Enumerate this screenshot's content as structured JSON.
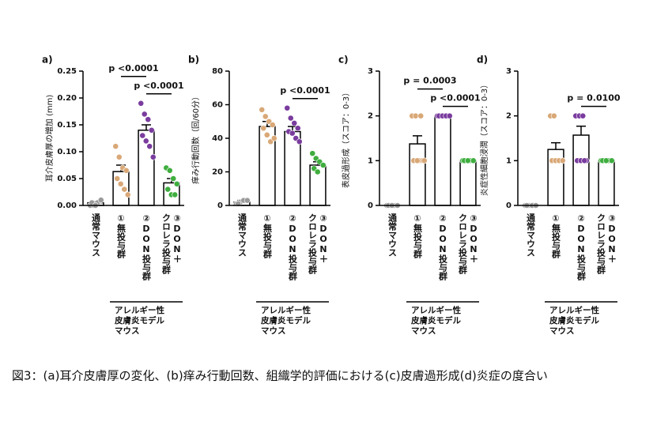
{
  "chart_data": [
    {
      "type": "bar",
      "label": "a)",
      "ylabel": "耳介皮膚厚の増加 (mm)",
      "categories": [
        [
          "通常マウス"
        ],
        [
          "①無投与群"
        ],
        [
          "②DON投与群"
        ],
        [
          "③DON＋",
          "クロレラ投与群"
        ]
      ],
      "values": [
        0.005,
        0.063,
        0.14,
        0.042
      ],
      "errors": [
        0.002,
        0.012,
        0.01,
        0.008
      ],
      "points": [
        [
          0,
          0,
          0.005,
          0.01,
          0.005,
          0
        ],
        [
          0.11,
          0.09,
          0.07,
          0.065,
          0.05,
          0.04,
          0.03,
          0.02
        ],
        [
          0.19,
          0.17,
          0.16,
          0.14,
          0.13,
          0.12,
          0.11,
          0.09
        ],
        [
          0.07,
          0.065,
          0.05,
          0.04,
          0.03,
          0.02,
          0.02
        ]
      ],
      "colors": [
        "#9a9a9a",
        "#d9a877",
        "#7a3c9e",
        "#3fae3f"
      ],
      "ylim": [
        0,
        0.25
      ],
      "yticks": [
        {
          "value": 0,
          "label": "0.00"
        },
        0.05,
        {
          "value": 0.1,
          "label": "0.10"
        },
        0.15,
        {
          "value": 0.2,
          "label": "0.20"
        },
        0.25
      ],
      "comparisons": [
        {
          "label": "p <0.0001",
          "groups": [
            2,
            3
          ]
        },
        {
          "label": "p <0.0001",
          "groups": [
            1,
            2
          ]
        }
      ],
      "group_label": [
        "アレルギー性",
        "皮膚炎モデル",
        "マウス"
      ],
      "group_span": [
        1,
        3
      ]
    },
    {
      "type": "bar",
      "label": "b)",
      "ylabel": "痒み行動回数（回/60分）",
      "categories": [
        [
          "通常マウス"
        ],
        [
          "①無投与群"
        ],
        [
          "②DON投与群"
        ],
        [
          "③DON＋",
          "クロレラ投与群"
        ]
      ],
      "values": [
        2,
        47,
        44,
        24
      ],
      "errors": [
        1,
        3,
        3,
        2
      ],
      "points": [
        [
          1,
          2,
          3,
          3,
          1
        ],
        [
          57,
          53,
          50,
          48,
          46,
          42,
          38,
          40
        ],
        [
          58,
          52,
          49,
          46,
          44,
          43,
          40,
          38
        ],
        [
          31,
          28,
          26,
          24,
          22,
          20
        ]
      ],
      "colors": [
        "#9a9a9a",
        "#d9a877",
        "#7a3c9e",
        "#3fae3f"
      ],
      "ylim": [
        0,
        80
      ],
      "yticks": [
        0,
        20,
        40,
        60,
        80
      ],
      "comparisons": [
        {
          "label": "p <0.0001",
          "groups": [
            2,
            3
          ]
        }
      ],
      "group_label": [
        "アレルギー性",
        "皮膚炎モデル",
        "マウス"
      ],
      "group_span": [
        1,
        3
      ]
    },
    {
      "type": "bar",
      "label": "c)",
      "ylabel": "表皮過形成（スコア：0-3）",
      "categories": [
        [
          "通常マウス"
        ],
        [
          "①無投与群"
        ],
        [
          "②DON投与群"
        ],
        [
          "③DON＋",
          "クロレラ投与群"
        ]
      ],
      "values": [
        0,
        1.375,
        2,
        1
      ],
      "errors": [
        0,
        0.18,
        0,
        0
      ],
      "points": [
        [
          0,
          0,
          0,
          0,
          0,
          0
        ],
        [
          2,
          2,
          1,
          1,
          1,
          1,
          2,
          1
        ],
        [
          2,
          2,
          2,
          2,
          2,
          2,
          2,
          2
        ],
        [
          1,
          1,
          1,
          1,
          1,
          1
        ]
      ],
      "colors": [
        "#9a9a9a",
        "#d9a877",
        "#7a3c9e",
        "#3fae3f"
      ],
      "ylim": [
        0,
        3
      ],
      "yticks": [
        0,
        1,
        2,
        3
      ],
      "comparisons": [
        {
          "label": "p <0.0001",
          "groups": [
            2,
            3
          ]
        },
        {
          "label": "p = 0.0003",
          "groups": [
            1,
            2
          ]
        }
      ],
      "group_label": [
        "アレルギー性",
        "皮膚炎モデル",
        "マウス"
      ],
      "group_span": [
        1,
        3
      ]
    },
    {
      "type": "bar",
      "label": "d)",
      "ylabel": "炎症性細胞浸潤（スコア：0-3）",
      "categories": [
        [
          "通常マウス"
        ],
        [
          "①無投与群"
        ],
        [
          "②DON投与群"
        ],
        [
          "③DON＋",
          "クロレラ投与群"
        ]
      ],
      "values": [
        0,
        1.25,
        1.57,
        1
      ],
      "errors": [
        0,
        0.15,
        0.2,
        0
      ],
      "points": [
        [
          0,
          0,
          0,
          0,
          0
        ],
        [
          2,
          2,
          1,
          1,
          1,
          1,
          1,
          1
        ],
        [
          2,
          2,
          2,
          1,
          1,
          1,
          1
        ],
        [
          1,
          1,
          1,
          1,
          1,
          1
        ]
      ],
      "colors": [
        "#9a9a9a",
        "#d9a877",
        "#7a3c9e",
        "#3fae3f"
      ],
      "ylim": [
        0,
        3
      ],
      "yticks": [
        0,
        1,
        2,
        3
      ],
      "comparisons": [
        {
          "label": "p = 0.0100",
          "groups": [
            2,
            3
          ]
        }
      ],
      "group_label": [
        "アレルギー性",
        "皮膚炎モデル",
        "マウス"
      ],
      "group_span": [
        1,
        3
      ]
    }
  ],
  "caption": "図3：(a)耳介皮膚厚の変化、(b)痒み行動回数、組織学的評価における(c)皮膚過形成(d)炎症の度合い"
}
